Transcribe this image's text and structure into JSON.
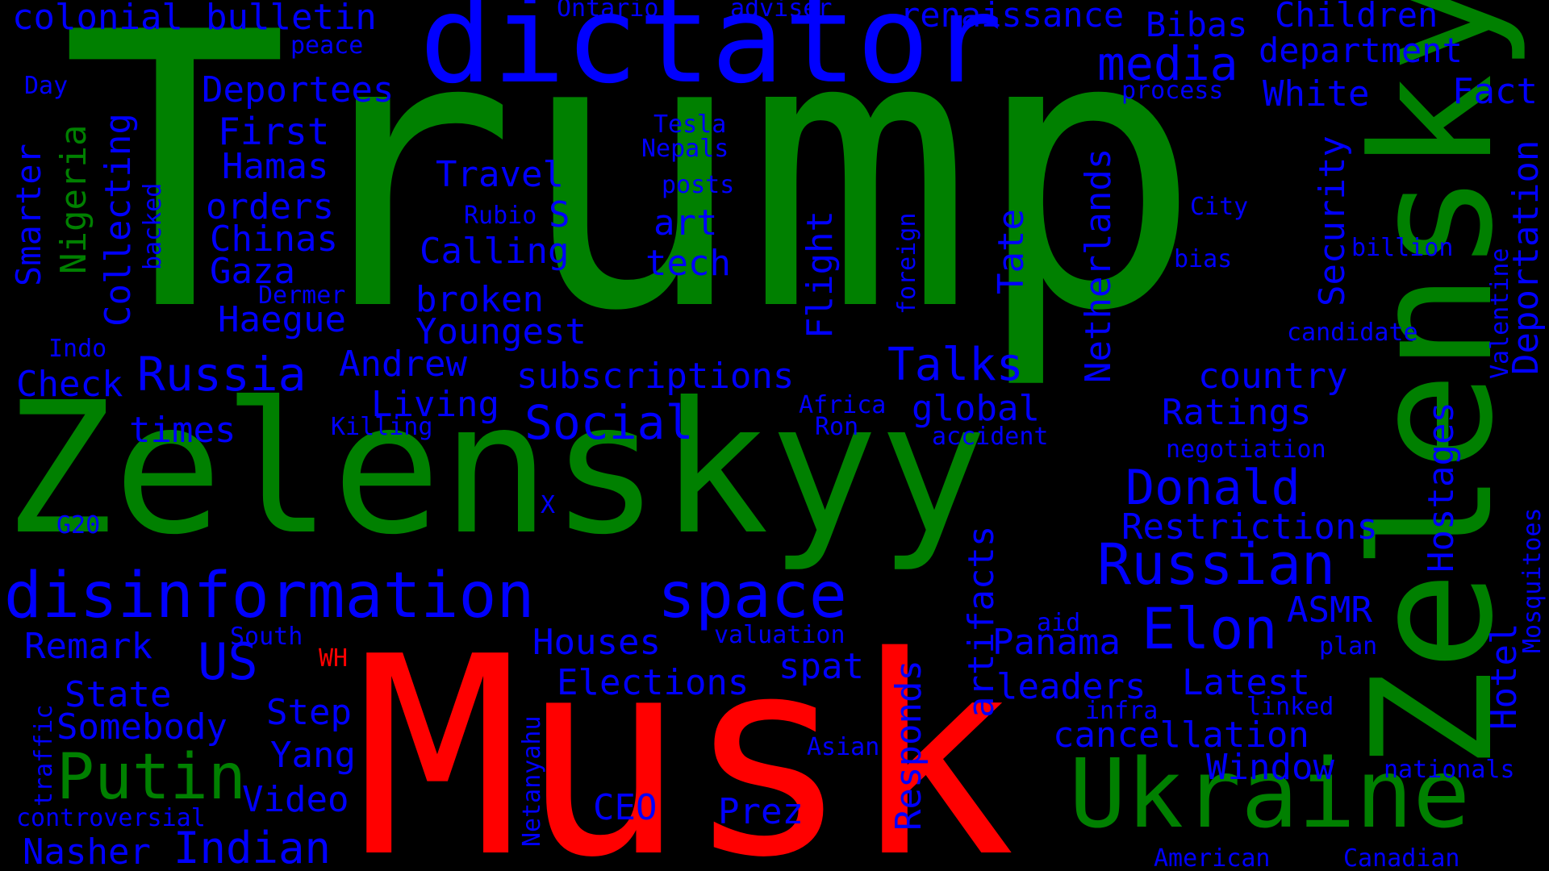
{
  "colors": {
    "background": "#000000",
    "green": "#008000",
    "blue": "#0000ff",
    "red": "#ff0000"
  },
  "words": [
    {
      "text": "Trump",
      "color": "green",
      "rotate": false,
      "size": "xl"
    },
    {
      "text": "Musk",
      "color": "red",
      "rotate": false,
      "size": "xl"
    },
    {
      "text": "Zelenskyy",
      "color": "green",
      "rotate": false,
      "size": "l"
    },
    {
      "text": "Zelensky",
      "color": "green",
      "rotate": true,
      "size": "l"
    },
    {
      "text": "dictator",
      "color": "blue",
      "rotate": false,
      "size": "l"
    },
    {
      "text": "Ukraine",
      "color": "green",
      "rotate": false,
      "size": "l"
    },
    {
      "text": "disinformation",
      "color": "blue",
      "rotate": false,
      "size": "m"
    },
    {
      "text": "space",
      "color": "blue",
      "rotate": false,
      "size": "m"
    },
    {
      "text": "Putin",
      "color": "green",
      "rotate": false,
      "size": "m"
    },
    {
      "text": "Russian",
      "color": "blue",
      "rotate": false,
      "size": "m"
    },
    {
      "text": "Elon",
      "color": "blue",
      "rotate": false,
      "size": "m"
    },
    {
      "text": "Russia",
      "color": "blue",
      "rotate": false,
      "size": "m"
    },
    {
      "text": "Social",
      "color": "blue",
      "rotate": false,
      "size": "m"
    },
    {
      "text": "Donald",
      "color": "blue",
      "rotate": false,
      "size": "m"
    },
    {
      "text": "media",
      "color": "blue",
      "rotate": false,
      "size": "m"
    },
    {
      "text": "Talks",
      "color": "blue",
      "rotate": false,
      "size": "m"
    },
    {
      "text": "Indian",
      "color": "blue",
      "rotate": false,
      "size": "m"
    },
    {
      "text": "US",
      "color": "blue",
      "rotate": false,
      "size": "m"
    },
    {
      "text": "colonial",
      "color": "blue",
      "rotate": false,
      "size": "s"
    },
    {
      "text": "bulletin",
      "color": "blue",
      "rotate": false,
      "size": "s"
    },
    {
      "text": "Ontario",
      "color": "blue",
      "rotate": false,
      "size": "xs"
    },
    {
      "text": "adviser",
      "color": "blue",
      "rotate": false,
      "size": "xs"
    },
    {
      "text": "renaissance",
      "color": "blue",
      "rotate": false,
      "size": "s"
    },
    {
      "text": "Bibas",
      "color": "blue",
      "rotate": false,
      "size": "s"
    },
    {
      "text": "Children",
      "color": "blue",
      "rotate": false,
      "size": "s"
    },
    {
      "text": "peace",
      "color": "blue",
      "rotate": false,
      "size": "xs"
    },
    {
      "text": "department",
      "color": "blue",
      "rotate": false,
      "size": "s"
    },
    {
      "text": "Day",
      "color": "blue",
      "rotate": false,
      "size": "xs"
    },
    {
      "text": "Deportees",
      "color": "blue",
      "rotate": false,
      "size": "s"
    },
    {
      "text": "process",
      "color": "blue",
      "rotate": false,
      "size": "xs"
    },
    {
      "text": "White",
      "color": "blue",
      "rotate": false,
      "size": "s"
    },
    {
      "text": "Fact",
      "color": "blue",
      "rotate": false,
      "size": "s"
    },
    {
      "text": "First",
      "color": "blue",
      "rotate": false,
      "size": "s"
    },
    {
      "text": "Tesla",
      "color": "blue",
      "rotate": false,
      "size": "xs"
    },
    {
      "text": "Nepals",
      "color": "blue",
      "rotate": false,
      "size": "xs"
    },
    {
      "text": "Hamas",
      "color": "blue",
      "rotate": false,
      "size": "s"
    },
    {
      "text": "Travel",
      "color": "blue",
      "rotate": false,
      "size": "s"
    },
    {
      "text": "posts",
      "color": "blue",
      "rotate": false,
      "size": "xs"
    },
    {
      "text": "orders",
      "color": "blue",
      "rotate": false,
      "size": "s"
    },
    {
      "text": "Rubio",
      "color": "blue",
      "rotate": false,
      "size": "xs"
    },
    {
      "text": "S",
      "color": "blue",
      "rotate": false,
      "size": "s"
    },
    {
      "text": "art",
      "color": "blue",
      "rotate": false,
      "size": "s"
    },
    {
      "text": "City",
      "color": "blue",
      "rotate": false,
      "size": "xs"
    },
    {
      "text": "Chinas",
      "color": "blue",
      "rotate": false,
      "size": "s"
    },
    {
      "text": "Calling",
      "color": "blue",
      "rotate": false,
      "size": "s"
    },
    {
      "text": "tech",
      "color": "blue",
      "rotate": false,
      "size": "s"
    },
    {
      "text": "billion",
      "color": "blue",
      "rotate": false,
      "size": "xs"
    },
    {
      "text": "Gaza",
      "color": "blue",
      "rotate": false,
      "size": "s"
    },
    {
      "text": "bias",
      "color": "blue",
      "rotate": false,
      "size": "xs"
    },
    {
      "text": "Dermer",
      "color": "blue",
      "rotate": false,
      "size": "xs"
    },
    {
      "text": "broken",
      "color": "blue",
      "rotate": false,
      "size": "s"
    },
    {
      "text": "Haegue",
      "color": "blue",
      "rotate": false,
      "size": "s"
    },
    {
      "text": "Youngest",
      "color": "blue",
      "rotate": false,
      "size": "s"
    },
    {
      "text": "candidate",
      "color": "blue",
      "rotate": false,
      "size": "xs"
    },
    {
      "text": "Indo",
      "color": "blue",
      "rotate": false,
      "size": "xs"
    },
    {
      "text": "Andrew",
      "color": "blue",
      "rotate": false,
      "size": "s"
    },
    {
      "text": "Check",
      "color": "blue",
      "rotate": false,
      "size": "s"
    },
    {
      "text": "subscriptions",
      "color": "blue",
      "rotate": false,
      "size": "s"
    },
    {
      "text": "country",
      "color": "blue",
      "rotate": false,
      "size": "s"
    },
    {
      "text": "Living",
      "color": "blue",
      "rotate": false,
      "size": "s"
    },
    {
      "text": "Africa",
      "color": "blue",
      "rotate": false,
      "size": "xs"
    },
    {
      "text": "global",
      "color": "blue",
      "rotate": false,
      "size": "s"
    },
    {
      "text": "Ratings",
      "color": "blue",
      "rotate": false,
      "size": "s"
    },
    {
      "text": "times",
      "color": "blue",
      "rotate": false,
      "size": "s"
    },
    {
      "text": "Killing",
      "color": "blue",
      "rotate": false,
      "size": "xs"
    },
    {
      "text": "Ron",
      "color": "blue",
      "rotate": false,
      "size": "xs"
    },
    {
      "text": "accident",
      "color": "blue",
      "rotate": false,
      "size": "xs"
    },
    {
      "text": "negotiation",
      "color": "blue",
      "rotate": false,
      "size": "xs"
    },
    {
      "text": "X",
      "color": "blue",
      "rotate": false,
      "size": "xs"
    },
    {
      "text": "G20",
      "color": "blue",
      "rotate": false,
      "size": "xs"
    },
    {
      "text": "Restrictions",
      "color": "blue",
      "rotate": false,
      "size": "s"
    },
    {
      "text": "ASMR",
      "color": "blue",
      "rotate": false,
      "size": "s"
    },
    {
      "text": "South",
      "color": "blue",
      "rotate": false,
      "size": "xs"
    },
    {
      "text": "valuation",
      "color": "blue",
      "rotate": false,
      "size": "xs"
    },
    {
      "text": "aid",
      "color": "blue",
      "rotate": false,
      "size": "xs"
    },
    {
      "text": "Remark",
      "color": "blue",
      "rotate": false,
      "size": "s"
    },
    {
      "text": "Houses",
      "color": "blue",
      "rotate": false,
      "size": "s"
    },
    {
      "text": "Panama",
      "color": "blue",
      "rotate": false,
      "size": "s"
    },
    {
      "text": "plan",
      "color": "blue",
      "rotate": false,
      "size": "xs"
    },
    {
      "text": "WH",
      "color": "red",
      "rotate": false,
      "size": "xs"
    },
    {
      "text": "spat",
      "color": "blue",
      "rotate": false,
      "size": "s"
    },
    {
      "text": "State",
      "color": "blue",
      "rotate": false,
      "size": "s"
    },
    {
      "text": "Elections",
      "color": "blue",
      "rotate": false,
      "size": "s"
    },
    {
      "text": "leaders",
      "color": "blue",
      "rotate": false,
      "size": "s"
    },
    {
      "text": "Latest",
      "color": "blue",
      "rotate": false,
      "size": "s"
    },
    {
      "text": "Step",
      "color": "blue",
      "rotate": false,
      "size": "s"
    },
    {
      "text": "infra",
      "color": "blue",
      "rotate": false,
      "size": "xs"
    },
    {
      "text": "linked",
      "color": "blue",
      "rotate": false,
      "size": "xs"
    },
    {
      "text": "Somebody",
      "color": "blue",
      "rotate": false,
      "size": "s"
    },
    {
      "text": "cancellation",
      "color": "blue",
      "rotate": false,
      "size": "s"
    },
    {
      "text": "Yang",
      "color": "blue",
      "rotate": false,
      "size": "s"
    },
    {
      "text": "Asian",
      "color": "blue",
      "rotate": false,
      "size": "xs"
    },
    {
      "text": "Window",
      "color": "blue",
      "rotate": false,
      "size": "s"
    },
    {
      "text": "nationals",
      "color": "blue",
      "rotate": false,
      "size": "xs"
    },
    {
      "text": "Video",
      "color": "blue",
      "rotate": false,
      "size": "s"
    },
    {
      "text": "CEO",
      "color": "blue",
      "rotate": false,
      "size": "s"
    },
    {
      "text": "Prez",
      "color": "blue",
      "rotate": false,
      "size": "s"
    },
    {
      "text": "controversial",
      "color": "blue",
      "rotate": false,
      "size": "xs"
    },
    {
      "text": "Nasher",
      "color": "blue",
      "rotate": false,
      "size": "s"
    },
    {
      "text": "American",
      "color": "blue",
      "rotate": false,
      "size": "xs"
    },
    {
      "text": "Canadian",
      "color": "blue",
      "rotate": false,
      "size": "xs"
    },
    {
      "text": "Smarter",
      "color": "blue",
      "rotate": true,
      "size": "s"
    },
    {
      "text": "Nigeria",
      "color": "green",
      "rotate": true,
      "size": "s"
    },
    {
      "text": "Collecting",
      "color": "blue",
      "rotate": true,
      "size": "s"
    },
    {
      "text": "backed",
      "color": "blue",
      "rotate": true,
      "size": "xs"
    },
    {
      "text": "Flight",
      "color": "blue",
      "rotate": true,
      "size": "s"
    },
    {
      "text": "foreign",
      "color": "blue",
      "rotate": true,
      "size": "xs"
    },
    {
      "text": "Tate",
      "color": "blue",
      "rotate": true,
      "size": "s"
    },
    {
      "text": "Netherlands",
      "color": "blue",
      "rotate": true,
      "size": "s"
    },
    {
      "text": "Security",
      "color": "blue",
      "rotate": true,
      "size": "s"
    },
    {
      "text": "Deportation",
      "color": "blue",
      "rotate": true,
      "size": "s"
    },
    {
      "text": "Valentine",
      "color": "blue",
      "rotate": true,
      "size": "xs"
    },
    {
      "text": "Hostages",
      "color": "blue",
      "rotate": true,
      "size": "s"
    },
    {
      "text": "Mosquitoes",
      "color": "blue",
      "rotate": true,
      "size": "xs"
    },
    {
      "text": "Hotel",
      "color": "blue",
      "rotate": true,
      "size": "s"
    },
    {
      "text": "artifacts",
      "color": "blue",
      "rotate": true,
      "size": "s"
    },
    {
      "text": "Responds",
      "color": "blue",
      "rotate": true,
      "size": "s"
    },
    {
      "text": "Netanyahu",
      "color": "blue",
      "rotate": true,
      "size": "xs"
    },
    {
      "text": "traffic",
      "color": "blue",
      "rotate": true,
      "size": "xs"
    }
  ]
}
